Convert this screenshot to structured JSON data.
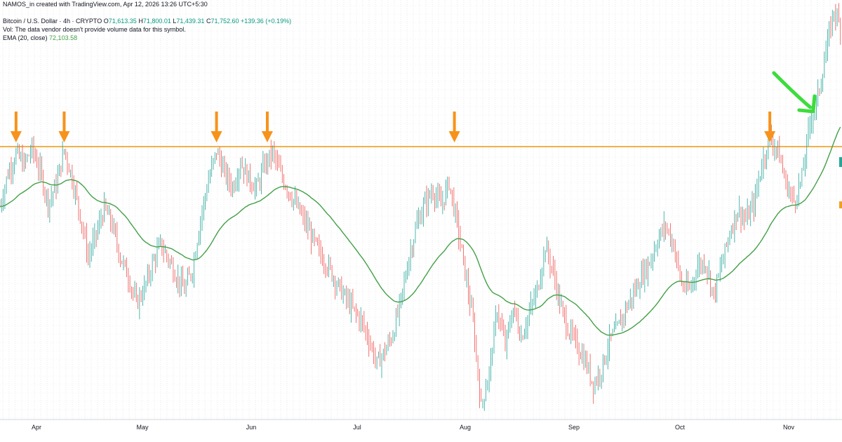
{
  "header": {
    "credit": "NAMOS_in created with TradingView.com, Apr 12, 2026 13:26 UTC+5:30",
    "symbol": "Bitcoin / U.S. Dollar · 4h · CRYPTO",
    "open_label": "O",
    "open": "71,613.35",
    "high_label": "H",
    "high": "71,800.01",
    "low_label": "L",
    "low": "71,439.31",
    "close_label": "C",
    "close": "71,752.60",
    "change": "+139.36 (+0.19%)",
    "volume_note": "Vol: The data vendor doesn't provide volume data for this symbol.",
    "ema_label": "EMA (20, close)",
    "ema_value": "72,103.58"
  },
  "colors": {
    "up": "#26a69a",
    "down": "#ef5350",
    "ema": "#43a047",
    "resistance": "#f0a020",
    "arrow_orange": "#f7931a",
    "arrow_green": "#3ddc3d",
    "grid": "#e6e8ee"
  },
  "chart_data": {
    "type": "candlestick",
    "x_ticks": [
      "Apr",
      "May",
      "Jun",
      "Jul",
      "Aug",
      "Sep",
      "Oct",
      "Nov"
    ],
    "resistance_level": 71613,
    "ylim": [
      56000,
      80000
    ],
    "series_path": [
      [
        0,
        68200
      ],
      [
        3,
        70100
      ],
      [
        6,
        71200
      ],
      [
        9,
        70600
      ],
      [
        12,
        71500
      ],
      [
        15,
        70200
      ],
      [
        18,
        68400
      ],
      [
        21,
        69400
      ],
      [
        24,
        71450
      ],
      [
        27,
        69800
      ],
      [
        30,
        67700
      ],
      [
        33,
        65300
      ],
      [
        36,
        66600
      ],
      [
        39,
        68100
      ],
      [
        42,
        67100
      ],
      [
        45,
        65300
      ],
      [
        48,
        64200
      ],
      [
        51,
        62600
      ],
      [
        54,
        63500
      ],
      [
        57,
        64900
      ],
      [
        60,
        66000
      ],
      [
        63,
        65200
      ],
      [
        66,
        64200
      ],
      [
        69,
        63400
      ],
      [
        72,
        64600
      ],
      [
        75,
        67500
      ],
      [
        78,
        69700
      ],
      [
        81,
        71350
      ],
      [
        84,
        70100
      ],
      [
        87,
        69300
      ],
      [
        90,
        70700
      ],
      [
        93,
        69800
      ],
      [
        96,
        69200
      ],
      [
        99,
        70600
      ],
      [
        102,
        71300
      ],
      [
        105,
        70000
      ],
      [
        108,
        69100
      ],
      [
        111,
        68200
      ],
      [
        114,
        67300
      ],
      [
        117,
        66300
      ],
      [
        120,
        65400
      ],
      [
        123,
        64700
      ],
      [
        126,
        63800
      ],
      [
        129,
        63000
      ],
      [
        132,
        62300
      ],
      [
        135,
        61700
      ],
      [
        138,
        60600
      ],
      [
        141,
        59200
      ],
      [
        144,
        59900
      ],
      [
        147,
        60900
      ],
      [
        150,
        62800
      ],
      [
        153,
        65300
      ],
      [
        156,
        67200
      ],
      [
        159,
        68400
      ],
      [
        162,
        69100
      ],
      [
        165,
        68200
      ],
      [
        168,
        69600
      ],
      [
        171,
        67200
      ],
      [
        174,
        64400
      ],
      [
        177,
        61500
      ],
      [
        180,
        56700
      ],
      [
        183,
        58700
      ],
      [
        186,
        62300
      ],
      [
        189,
        60200
      ],
      [
        192,
        62400
      ],
      [
        195,
        60700
      ],
      [
        198,
        62100
      ],
      [
        201,
        63400
      ],
      [
        204,
        65900
      ],
      [
        207,
        64400
      ],
      [
        210,
        62300
      ],
      [
        213,
        61000
      ],
      [
        216,
        60200
      ],
      [
        219,
        59300
      ],
      [
        222,
        58000
      ],
      [
        225,
        58900
      ],
      [
        228,
        60500
      ],
      [
        231,
        61200
      ],
      [
        234,
        62300
      ],
      [
        237,
        63200
      ],
      [
        240,
        64200
      ],
      [
        243,
        65000
      ],
      [
        246,
        66300
      ],
      [
        249,
        67100
      ],
      [
        252,
        66000
      ],
      [
        255,
        63700
      ],
      [
        258,
        63400
      ],
      [
        261,
        64800
      ],
      [
        264,
        65000
      ],
      [
        267,
        63100
      ],
      [
        270,
        64900
      ],
      [
        273,
        66700
      ],
      [
        276,
        68000
      ],
      [
        279,
        67400
      ],
      [
        282,
        68300
      ],
      [
        285,
        70600
      ],
      [
        288,
        72100
      ],
      [
        291,
        71400
      ],
      [
        294,
        69500
      ],
      [
        297,
        68500
      ],
      [
        300,
        69800
      ],
      [
        303,
        73000
      ],
      [
        306,
        74500
      ],
      [
        309,
        77000
      ],
      [
        312,
        79500
      ],
      [
        315,
        78100
      ]
    ],
    "series_x_range": [
      0,
      315
    ],
    "ema_window": 20,
    "markers": [
      {
        "type": "arrow-down",
        "x": 6,
        "color": "orange"
      },
      {
        "type": "arrow-down",
        "x": 24,
        "color": "orange"
      },
      {
        "type": "arrow-down",
        "x": 81,
        "color": "orange"
      },
      {
        "type": "arrow-down",
        "x": 100,
        "color": "orange"
      },
      {
        "type": "arrow-down",
        "x": 170,
        "color": "orange"
      },
      {
        "type": "arrow-down",
        "x": 288,
        "color": "orange"
      },
      {
        "type": "arrow-curve",
        "x": 300,
        "color": "green"
      }
    ]
  }
}
